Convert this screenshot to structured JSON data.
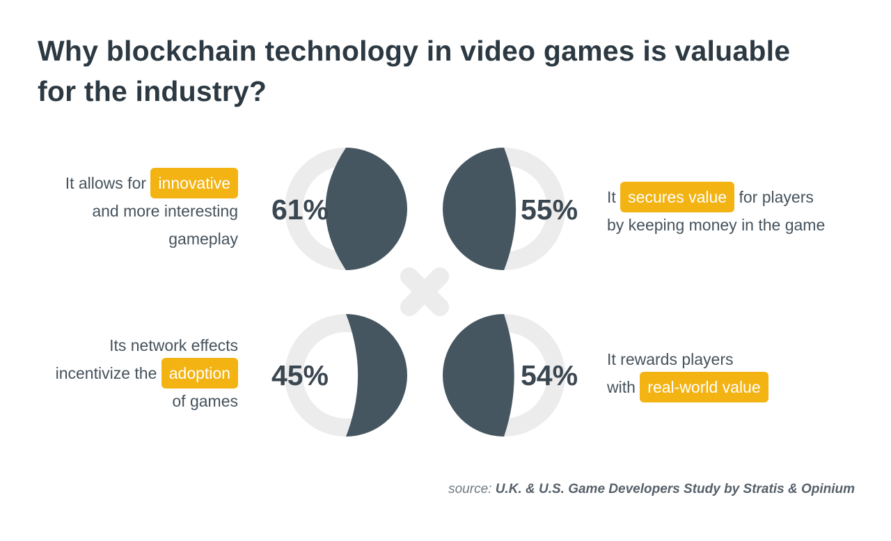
{
  "title": {
    "line1": "Why blockchain technology in video games is valuable",
    "line2": "for the industry?"
  },
  "colors": {
    "filled": "#455661",
    "track": "#ececec",
    "highlight": "#f2b313",
    "title": "#2c3942",
    "text": "#45525c"
  },
  "chart_data": {
    "type": "pie",
    "categories": [
      "It allows for innovative and more interesting gameplay",
      "It secures value for players by keeping money in the game",
      "Its network effects incentivize the adoption of games",
      "It rewards players with real-world value"
    ],
    "values": [
      61,
      55,
      45,
      54
    ],
    "unit": "%",
    "legend": "none"
  },
  "items": [
    {
      "pct": "61%",
      "lines": [
        {
          "pre": "It allows for ",
          "hl": "innovative",
          "post": ""
        },
        {
          "pre": "and more interesting",
          "hl": "",
          "post": ""
        },
        {
          "pre": "gameplay",
          "hl": "",
          "post": ""
        }
      ]
    },
    {
      "pct": "55%",
      "lines": [
        {
          "pre": "It ",
          "hl": "secures value",
          "post": " for players"
        },
        {
          "pre": "by keeping money in the game",
          "hl": "",
          "post": ""
        }
      ]
    },
    {
      "pct": "45%",
      "lines": [
        {
          "pre": "Its network effects",
          "hl": "",
          "post": ""
        },
        {
          "pre": "incentivize the ",
          "hl": "adoption",
          "post": ""
        },
        {
          "pre": "of games",
          "hl": "",
          "post": ""
        }
      ]
    },
    {
      "pct": "54%",
      "lines": [
        {
          "pre": "It rewards players",
          "hl": "",
          "post": ""
        },
        {
          "pre": "with ",
          "hl": "real-world value",
          "post": ""
        }
      ]
    }
  ],
  "source": {
    "prefix": "source: ",
    "name": "U.K. & U.S. Game Developers Study by Stratis & Opinium"
  }
}
